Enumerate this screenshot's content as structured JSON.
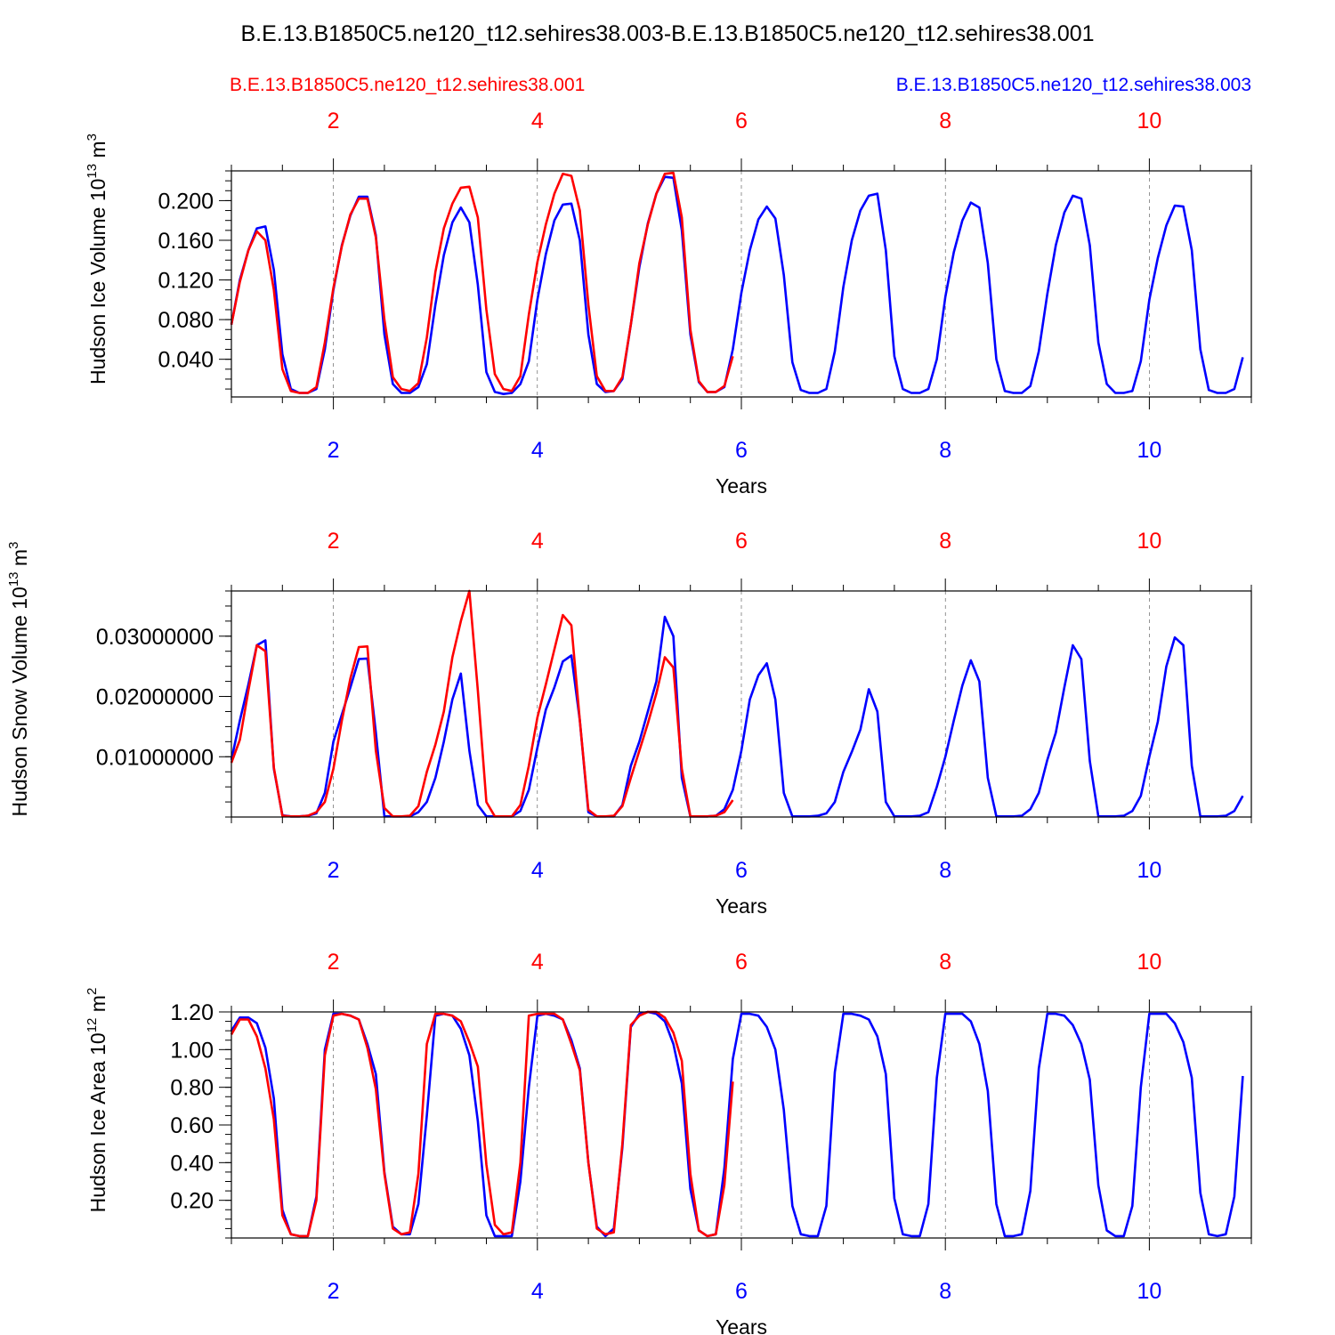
{
  "figure": {
    "title": "B.E.13.B1850C5.ne120_t12.sehires38.003-B.E.13.B1850C5.ne120_t12.sehires38.001",
    "legend_red": "B.E.13.B1850C5.ne120_t12.sehires38.001",
    "legend_blue": "B.E.13.B1850C5.ne120_t12.sehires38.003"
  },
  "colors": {
    "red_series": "#ff0000",
    "blue_series": "#0000ff",
    "axis": "#000000",
    "grid": "#000000"
  },
  "chart_data": [
    {
      "type": "line",
      "xlabel": "Years",
      "ylabel": "Hudson Ice Volume 10^13 m^3",
      "ylabel_main": "Hudson Ice Volume 10",
      "ylabel_exp": "13",
      "ylabel_unit": "m",
      "ylabel_unit_exp": "3",
      "xlim": [
        1,
        11
      ],
      "ylim": [
        0.002,
        0.23
      ],
      "xticks": [
        2,
        4,
        6,
        8,
        10
      ],
      "yticks": [
        0.04,
        0.08,
        0.12,
        0.16,
        0.2
      ],
      "ytick_labels": [
        "0.040",
        "0.080",
        "0.120",
        "0.160",
        "0.200"
      ],
      "grid_x": "dashed at major x ticks",
      "series": [
        {
          "name": "B.E.13.B1850C5.ne120_t12.sehires38.003",
          "color": "#0000ff",
          "x_start": 1.0,
          "x_step": 0.0833333,
          "values": [
            0.075,
            0.12,
            0.15,
            0.172,
            0.174,
            0.13,
            0.045,
            0.01,
            0.006,
            0.006,
            0.01,
            0.05,
            0.11,
            0.155,
            0.185,
            0.204,
            0.204,
            0.165,
            0.065,
            0.015,
            0.006,
            0.006,
            0.012,
            0.035,
            0.095,
            0.145,
            0.178,
            0.193,
            0.178,
            0.115,
            0.027,
            0.007,
            0.005,
            0.006,
            0.015,
            0.038,
            0.1,
            0.146,
            0.18,
            0.196,
            0.197,
            0.16,
            0.065,
            0.015,
            0.007,
            0.008,
            0.02,
            0.075,
            0.133,
            0.177,
            0.207,
            0.224,
            0.223,
            0.17,
            0.065,
            0.017,
            0.007,
            0.007,
            0.012,
            0.05,
            0.107,
            0.15,
            0.181,
            0.194,
            0.182,
            0.125,
            0.037,
            0.009,
            0.006,
            0.006,
            0.01,
            0.048,
            0.113,
            0.16,
            0.19,
            0.205,
            0.207,
            0.15,
            0.043,
            0.01,
            0.006,
            0.006,
            0.01,
            0.04,
            0.103,
            0.148,
            0.18,
            0.198,
            0.193,
            0.137,
            0.04,
            0.008,
            0.006,
            0.006,
            0.013,
            0.048,
            0.106,
            0.155,
            0.188,
            0.205,
            0.202,
            0.155,
            0.057,
            0.015,
            0.006,
            0.006,
            0.008,
            0.038,
            0.1,
            0.142,
            0.175,
            0.195,
            0.194,
            0.15,
            0.05,
            0.009,
            0.006,
            0.006,
            0.01,
            0.042
          ]
        },
        {
          "name": "B.E.13.B1850C5.ne120_t12.sehires38.001",
          "color": "#ff0000",
          "x_start": 1.0,
          "x_step": 0.0833333,
          "values": [
            0.075,
            0.118,
            0.15,
            0.169,
            0.16,
            0.11,
            0.03,
            0.008,
            0.006,
            0.006,
            0.012,
            0.057,
            0.112,
            0.154,
            0.186,
            0.202,
            0.202,
            0.163,
            0.08,
            0.022,
            0.01,
            0.008,
            0.016,
            0.062,
            0.128,
            0.172,
            0.197,
            0.213,
            0.214,
            0.183,
            0.09,
            0.025,
            0.01,
            0.008,
            0.023,
            0.085,
            0.138,
            0.176,
            0.207,
            0.227,
            0.225,
            0.19,
            0.095,
            0.023,
            0.008,
            0.008,
            0.022,
            0.075,
            0.137,
            0.176,
            0.207,
            0.227,
            0.228,
            0.183,
            0.07,
            0.018,
            0.007,
            0.007,
            0.013,
            0.043
          ]
        }
      ]
    },
    {
      "type": "line",
      "xlabel": "Years",
      "ylabel": "Hudson Snow Volume 10^13 m^3",
      "ylabel_main": "Hudson Snow Volume 10",
      "ylabel_exp": "13",
      "ylabel_unit": "m",
      "ylabel_unit_exp": "3",
      "xlim": [
        1,
        11
      ],
      "ylim": [
        0.0,
        0.0375
      ],
      "xticks": [
        2,
        4,
        6,
        8,
        10
      ],
      "yticks": [
        0.01,
        0.02,
        0.03
      ],
      "ytick_labels": [
        "0.01000000",
        "0.02000000",
        "0.03000000"
      ],
      "grid_x": "dashed at major x ticks",
      "series": [
        {
          "name": "B.E.13.B1850C5.ne120_t12.sehires38.003",
          "color": "#0000ff",
          "x_start": 1.0,
          "x_step": 0.0833333,
          "values": [
            0.0095,
            0.016,
            0.022,
            0.0285,
            0.0293,
            0.008,
            0.0003,
            0.0001,
            0.0001,
            0.0002,
            0.0006,
            0.004,
            0.0125,
            0.017,
            0.0215,
            0.0262,
            0.0263,
            0.014,
            0.0001,
            0.0001,
            0.0001,
            0.0001,
            0.0008,
            0.0025,
            0.0065,
            0.0125,
            0.0195,
            0.0238,
            0.011,
            0.002,
            0.0001,
            0.0001,
            0.0001,
            0.0001,
            0.001,
            0.0045,
            0.0115,
            0.0178,
            0.0215,
            0.0258,
            0.0268,
            0.016,
            0.0008,
            0.0001,
            0.0001,
            0.0001,
            0.002,
            0.0085,
            0.0125,
            0.0175,
            0.0225,
            0.0332,
            0.03,
            0.0065,
            0.0001,
            0.0001,
            0.0001,
            0.0002,
            0.0013,
            0.0045,
            0.011,
            0.0195,
            0.0235,
            0.0255,
            0.0195,
            0.004,
            0.0001,
            0.0001,
            0.0001,
            0.0002,
            0.0006,
            0.0025,
            0.0075,
            0.0108,
            0.0145,
            0.0212,
            0.0175,
            0.0025,
            0.0001,
            0.0001,
            0.0001,
            0.0002,
            0.0008,
            0.005,
            0.01,
            0.016,
            0.0218,
            0.026,
            0.0225,
            0.0065,
            0.0001,
            0.0001,
            0.0001,
            0.0002,
            0.0013,
            0.004,
            0.0095,
            0.014,
            0.0215,
            0.0285,
            0.0262,
            0.0093,
            0.0001,
            0.0001,
            0.0001,
            0.0002,
            0.001,
            0.0035,
            0.01,
            0.0158,
            0.025,
            0.0298,
            0.0285,
            0.0085,
            0.0001,
            0.0001,
            0.0001,
            0.0002,
            0.001,
            0.0035
          ]
        },
        {
          "name": "B.E.13.B1850C5.ne120_t12.sehires38.001",
          "color": "#ff0000",
          "x_start": 1.0,
          "x_step": 0.0833333,
          "values": [
            0.009,
            0.0128,
            0.021,
            0.0285,
            0.0275,
            0.0082,
            0.0002,
            0.0001,
            0.0001,
            0.0002,
            0.0008,
            0.0025,
            0.008,
            0.016,
            0.023,
            0.0282,
            0.0283,
            0.011,
            0.0015,
            0.0001,
            0.0001,
            0.0002,
            0.0018,
            0.0075,
            0.012,
            0.0175,
            0.0265,
            0.0325,
            0.0375,
            0.021,
            0.0025,
            0.0001,
            0.0001,
            0.0001,
            0.002,
            0.0085,
            0.0165,
            0.022,
            0.0278,
            0.0335,
            0.0318,
            0.016,
            0.0012,
            0.0001,
            0.0001,
            0.0002,
            0.0018,
            0.0065,
            0.011,
            0.0155,
            0.0205,
            0.0265,
            0.0248,
            0.008,
            0.0001,
            0.0001,
            0.0001,
            0.0002,
            0.0008,
            0.0028
          ]
        }
      ]
    },
    {
      "type": "line",
      "xlabel": "Years",
      "ylabel": "Hudson Ice Area 10^12 m^2",
      "ylabel_main": "Hudson Ice Area 10",
      "ylabel_exp": "12",
      "ylabel_unit": "m",
      "ylabel_unit_exp": "2",
      "xlim": [
        1,
        11
      ],
      "ylim": [
        0.0,
        1.2
      ],
      "xticks": [
        2,
        4,
        6,
        8,
        10
      ],
      "yticks": [
        0.2,
        0.4,
        0.6,
        0.8,
        1.0,
        1.2
      ],
      "ytick_labels": [
        "0.20",
        "0.40",
        "0.60",
        "0.80",
        "1.00",
        "1.20"
      ],
      "grid_x": "dashed at major x ticks",
      "series": [
        {
          "name": "B.E.13.B1850C5.ne120_t12.sehires38.003",
          "color": "#0000ff",
          "x_start": 1.0,
          "x_step": 0.0833333,
          "values": [
            1.1,
            1.17,
            1.17,
            1.14,
            1.01,
            0.74,
            0.15,
            0.02,
            0.01,
            0.01,
            0.22,
            1.0,
            1.19,
            1.19,
            1.18,
            1.16,
            1.03,
            0.87,
            0.35,
            0.06,
            0.02,
            0.02,
            0.18,
            0.65,
            1.18,
            1.19,
            1.18,
            1.11,
            0.97,
            0.62,
            0.12,
            0.01,
            0.01,
            0.01,
            0.3,
            0.8,
            1.18,
            1.19,
            1.18,
            1.16,
            1.05,
            0.9,
            0.4,
            0.06,
            0.01,
            0.05,
            0.48,
            1.12,
            1.19,
            1.2,
            1.19,
            1.15,
            1.03,
            0.82,
            0.26,
            0.04,
            0.01,
            0.02,
            0.37,
            0.95,
            1.19,
            1.19,
            1.18,
            1.12,
            1.0,
            0.68,
            0.17,
            0.02,
            0.01,
            0.01,
            0.17,
            0.88,
            1.19,
            1.19,
            1.18,
            1.16,
            1.07,
            0.87,
            0.21,
            0.02,
            0.01,
            0.01,
            0.18,
            0.85,
            1.19,
            1.19,
            1.19,
            1.15,
            1.03,
            0.78,
            0.18,
            0.01,
            0.01,
            0.02,
            0.25,
            0.9,
            1.19,
            1.19,
            1.18,
            1.13,
            1.03,
            0.84,
            0.28,
            0.04,
            0.01,
            0.01,
            0.17,
            0.8,
            1.19,
            1.19,
            1.19,
            1.14,
            1.04,
            0.85,
            0.24,
            0.02,
            0.01,
            0.02,
            0.22,
            0.86
          ]
        },
        {
          "name": "B.E.13.B1850C5.ne120_t12.sehires38.001",
          "color": "#ff0000",
          "x_start": 1.0,
          "x_step": 0.0833333,
          "values": [
            1.08,
            1.16,
            1.16,
            1.07,
            0.9,
            0.63,
            0.12,
            0.02,
            0.01,
            0.01,
            0.2,
            0.97,
            1.18,
            1.19,
            1.18,
            1.16,
            1.01,
            0.79,
            0.34,
            0.05,
            0.02,
            0.03,
            0.34,
            1.03,
            1.19,
            1.19,
            1.18,
            1.15,
            1.04,
            0.91,
            0.39,
            0.07,
            0.02,
            0.03,
            0.4,
            1.18,
            1.19,
            1.19,
            1.19,
            1.16,
            1.03,
            0.89,
            0.4,
            0.05,
            0.02,
            0.03,
            0.5,
            1.13,
            1.18,
            1.2,
            1.2,
            1.17,
            1.09,
            0.94,
            0.34,
            0.04,
            0.01,
            0.02,
            0.28,
            0.83
          ]
        }
      ]
    }
  ]
}
